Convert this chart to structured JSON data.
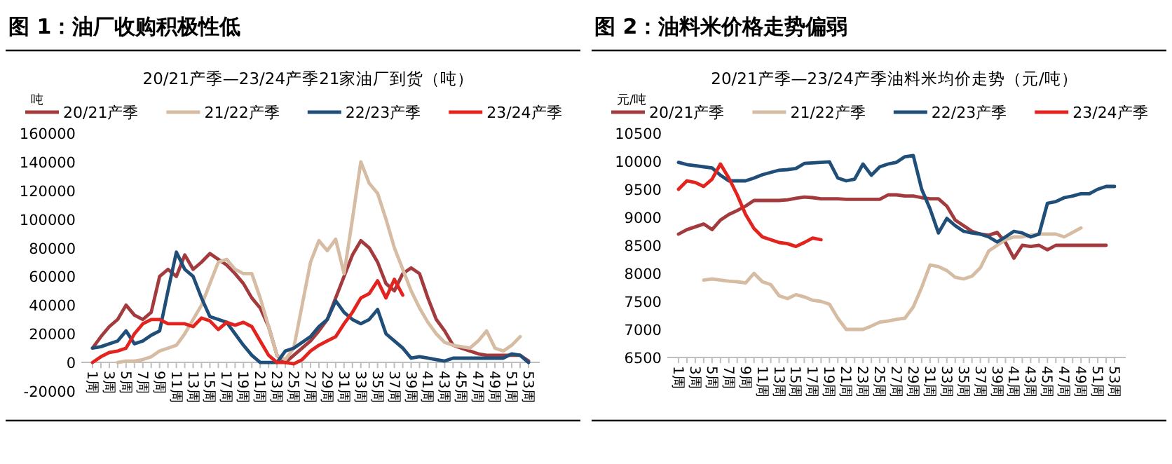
{
  "chart_data": [
    {
      "type": "line",
      "title": "图 1：油厂收购积极性低",
      "subtitle": "20/21产季—23/24产季21家油厂到货（吨）",
      "ylabel": "吨",
      "categories": [
        "1周",
        null,
        "3周",
        null,
        "5周",
        null,
        "7周",
        null,
        "9周",
        null,
        "11周",
        null,
        "13周",
        null,
        "15周",
        null,
        "17周",
        null,
        "19周",
        null,
        "21周",
        null,
        "23周",
        null,
        "25周",
        null,
        "27周",
        null,
        "29周",
        null,
        "31周",
        null,
        "33周",
        null,
        "35周",
        null,
        "37周",
        null,
        "39周",
        null,
        "41周",
        null,
        "43周",
        null,
        "45周",
        null,
        "47周",
        null,
        "49周",
        null,
        "51周",
        null,
        "53周"
      ],
      "ylim": [
        -20000,
        160000
      ],
      "yticks": [
        -20000,
        0,
        20000,
        40000,
        60000,
        80000,
        100000,
        120000,
        140000,
        160000
      ],
      "legend": "top",
      "grid": false,
      "marker": "none",
      "line_style": "solid",
      "series": [
        {
          "name": "20/21产季",
          "color": "#a33b3e",
          "values": [
            10000,
            18000,
            25000,
            30000,
            40000,
            33000,
            30000,
            35000,
            60000,
            65000,
            60000,
            75000,
            65000,
            70000,
            76000,
            72000,
            68000,
            62000,
            55000,
            45000,
            38000,
            25000,
            5000,
            0,
            5000,
            10000,
            15000,
            22000,
            30000,
            45000,
            60000,
            75000,
            85000,
            80000,
            70000,
            55000,
            50000,
            62000,
            66000,
            62000,
            45000,
            30000,
            22000,
            12000,
            10000,
            8000,
            6000,
            5000,
            5000,
            5000,
            5000,
            5000,
            1000
          ]
        },
        {
          "name": "21/22产季",
          "color": "#d5bca3",
          "values": [
            null,
            null,
            null,
            0,
            1000,
            1000,
            2000,
            4000,
            8000,
            10000,
            12000,
            20000,
            30000,
            40000,
            55000,
            70000,
            72000,
            65000,
            62000,
            62000,
            45000,
            25000,
            5000,
            2000,
            10000,
            40000,
            70000,
            85000,
            78000,
            86000,
            62000,
            100000,
            140000,
            125000,
            118000,
            100000,
            80000,
            65000,
            50000,
            38000,
            28000,
            20000,
            14000,
            12000,
            11000,
            10000,
            15000,
            22000,
            10000,
            8000,
            12000,
            18000,
            null
          ]
        },
        {
          "name": "22/23产季",
          "color": "#1f4e79",
          "values": [
            10000,
            11000,
            13000,
            15000,
            22000,
            13000,
            15000,
            19000,
            22000,
            50000,
            77000,
            65000,
            60000,
            45000,
            32000,
            30000,
            28000,
            20000,
            12000,
            5000,
            0,
            0,
            0,
            8000,
            10000,
            14000,
            18000,
            25000,
            30000,
            43000,
            35000,
            30000,
            27000,
            30000,
            37000,
            20000,
            15000,
            10000,
            3000,
            4000,
            3000,
            2000,
            1000,
            3000,
            3000,
            3000,
            3000,
            3000,
            3000,
            3000,
            6000,
            5000,
            0
          ]
        },
        {
          "name": "23/24产季",
          "color": "#e3231e",
          "values": [
            0,
            4000,
            7000,
            8000,
            10000,
            20000,
            27000,
            30000,
            30000,
            27000,
            27000,
            27000,
            25000,
            31000,
            29000,
            23000,
            28000,
            26000,
            28000,
            25000,
            15000,
            5000,
            0,
            0,
            -1000,
            2000,
            8000,
            12000,
            15000,
            18000,
            27000,
            35000,
            45000,
            48000,
            57000,
            45000,
            58000,
            47000,
            null,
            null,
            null,
            null,
            null,
            null,
            null,
            null,
            null,
            null,
            null,
            null,
            null,
            null,
            null
          ]
        }
      ]
    },
    {
      "type": "line",
      "title": "图 2：油料米价格走势偏弱",
      "subtitle": "20/21产季—23/24产季油料米均价走势（元/吨）",
      "ylabel": "元/吨",
      "categories": [
        "1周",
        null,
        "3周",
        null,
        "5周",
        null,
        "7周",
        null,
        "9周",
        null,
        "11周",
        null,
        "13周",
        null,
        "15周",
        null,
        "17周",
        null,
        "19周",
        null,
        "21周",
        null,
        "23周",
        null,
        "25周",
        null,
        "27周",
        null,
        "29周",
        null,
        "31周",
        null,
        "33周",
        null,
        "35周",
        null,
        "37周",
        null,
        "39周",
        null,
        "41周",
        null,
        "43周",
        null,
        "45周",
        null,
        "47周",
        null,
        "49周",
        null,
        "51周",
        null,
        "53周"
      ],
      "ylim": [
        6500,
        10500
      ],
      "yticks": [
        6500,
        7000,
        7500,
        8000,
        8500,
        9000,
        9500,
        10000,
        10500
      ],
      "legend": "top",
      "grid": false,
      "marker": "none",
      "line_style": "solid",
      "series": [
        {
          "name": "20/21产季",
          "color": "#a33b3e",
          "values": [
            8700,
            8780,
            8830,
            8880,
            8780,
            8950,
            9050,
            9120,
            9200,
            9300,
            9300,
            9300,
            9300,
            9310,
            9340,
            9360,
            9350,
            9330,
            9330,
            9330,
            9320,
            9320,
            9320,
            9320,
            9320,
            9400,
            9400,
            9380,
            9380,
            9350,
            9330,
            9330,
            9200,
            8950,
            8850,
            8750,
            8700,
            8680,
            8730,
            8550,
            8270,
            8500,
            8480,
            8500,
            8420,
            8500,
            8500,
            8500,
            8500,
            8500,
            8500,
            8500,
            null
          ]
        },
        {
          "name": "21/22产季",
          "color": "#d5bca3",
          "values": [
            null,
            null,
            null,
            7880,
            7900,
            7880,
            7860,
            7850,
            7830,
            8000,
            7850,
            7800,
            7600,
            7550,
            7620,
            7580,
            7520,
            7500,
            7450,
            7200,
            7000,
            7000,
            7000,
            7060,
            7130,
            7150,
            7180,
            7200,
            7400,
            7750,
            8150,
            8120,
            8050,
            7930,
            7900,
            7950,
            8100,
            8400,
            8500,
            8600,
            8650,
            8650,
            8680,
            8700,
            8700,
            8700,
            8650,
            8730,
            8810,
            null,
            null,
            null,
            null
          ]
        },
        {
          "name": "22/23产季",
          "color": "#1f4e79",
          "values": [
            9980,
            9940,
            9920,
            9900,
            9880,
            9750,
            9650,
            9650,
            9650,
            9700,
            9760,
            9800,
            9840,
            9850,
            9870,
            9960,
            9970,
            9980,
            9990,
            9700,
            9650,
            9680,
            9950,
            9750,
            9900,
            9950,
            9980,
            10080,
            10100,
            9500,
            9150,
            8720,
            8980,
            8850,
            8750,
            8720,
            8700,
            8650,
            8560,
            8650,
            8750,
            8720,
            8650,
            8700,
            9250,
            9280,
            9350,
            9380,
            9420,
            9420,
            9500,
            9550,
            9550
          ]
        },
        {
          "name": "23/24产季",
          "color": "#e3231e",
          "values": [
            9500,
            9650,
            9620,
            9550,
            9680,
            9950,
            9700,
            9400,
            9050,
            8800,
            8650,
            8600,
            8550,
            8530,
            8480,
            8550,
            8630,
            8600,
            null,
            null,
            null,
            null,
            null,
            null,
            null,
            null,
            null,
            null,
            null,
            null,
            null,
            null,
            null,
            null,
            null,
            null,
            null,
            null,
            null,
            null,
            null,
            null,
            null,
            null,
            null,
            null,
            null,
            null,
            null,
            null,
            null,
            null,
            null
          ]
        }
      ]
    }
  ]
}
